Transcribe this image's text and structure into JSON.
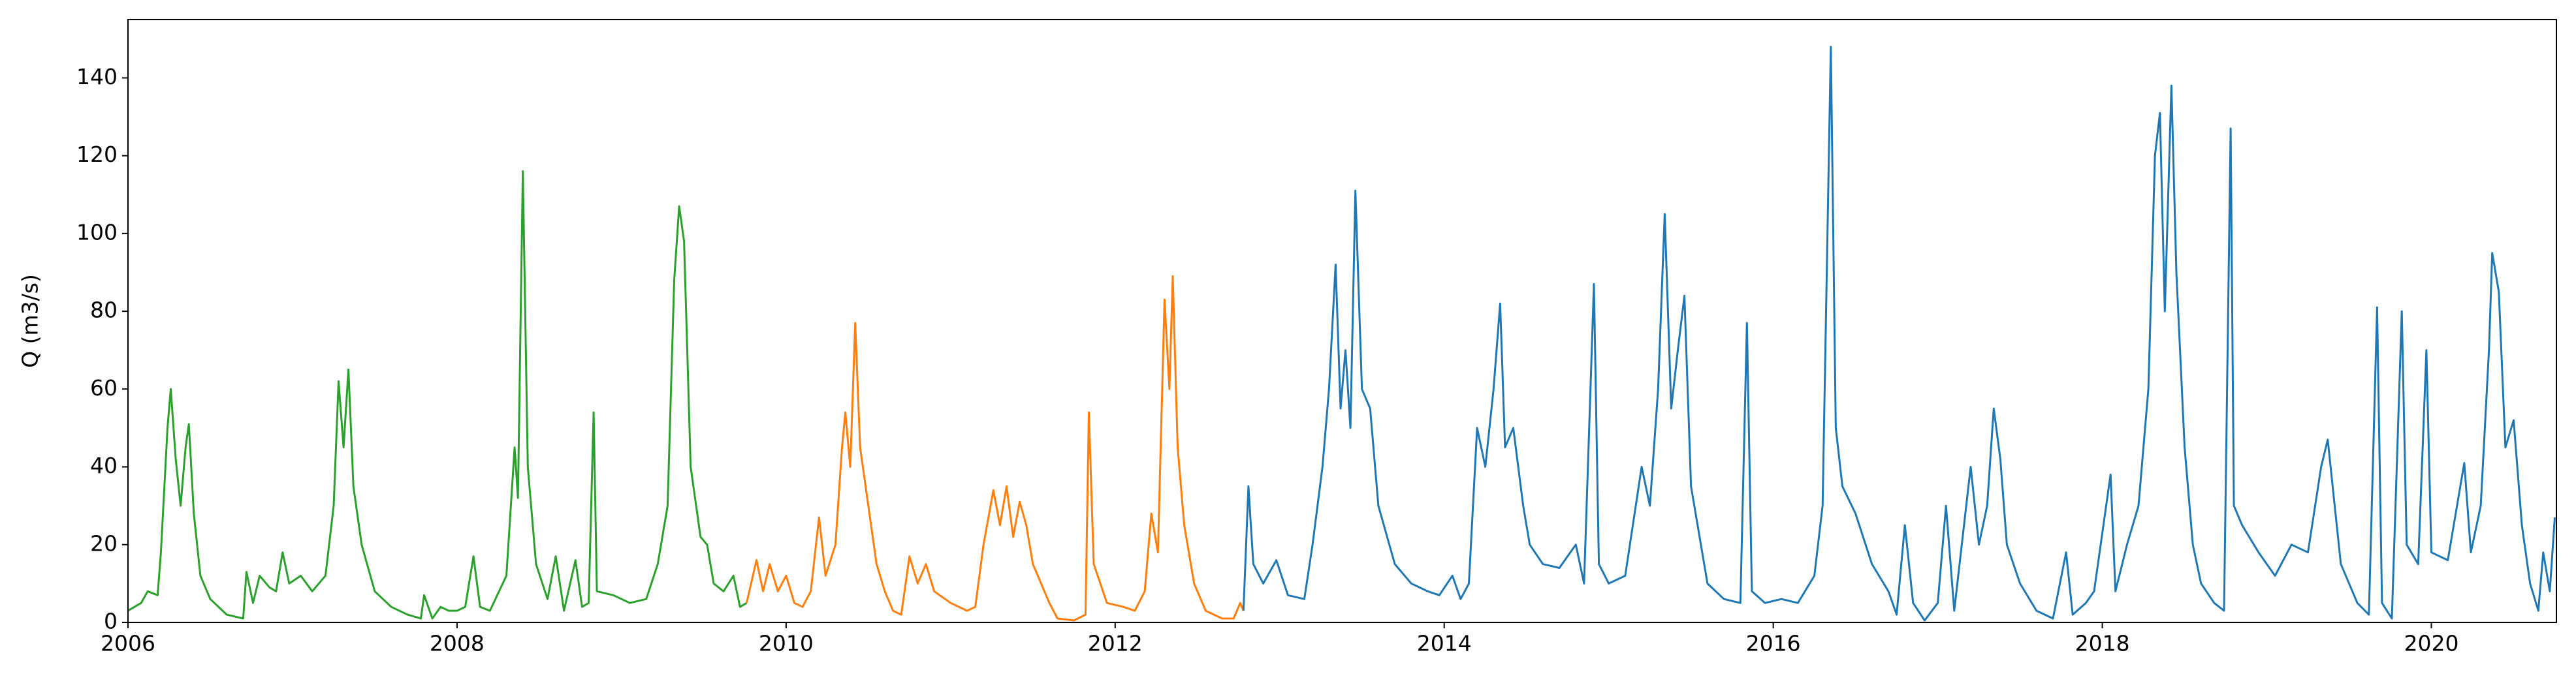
{
  "chart_data": {
    "type": "line",
    "ylabel": "Q (m3/s)",
    "xlim": [
      2006,
      2020.76
    ],
    "ylim": [
      0,
      155
    ],
    "xticks": [
      2006,
      2008,
      2010,
      2012,
      2014,
      2016,
      2018,
      2020
    ],
    "yticks": [
      0,
      20,
      40,
      60,
      80,
      100,
      120,
      140
    ],
    "grid": false,
    "series": [
      {
        "color": "#2ca02c",
        "x": [
          2006.0,
          2006.08,
          2006.12,
          2006.18,
          2006.2,
          2006.24,
          2006.26,
          2006.29,
          2006.32,
          2006.35,
          2006.37,
          2006.4,
          2006.44,
          2006.5,
          2006.6,
          2006.7,
          2006.72,
          2006.76,
          2006.8,
          2006.86,
          2006.9,
          2006.94,
          2006.98,
          2007.05,
          2007.12,
          2007.2,
          2007.25,
          2007.28,
          2007.31,
          2007.34,
          2007.37,
          2007.42,
          2007.5,
          2007.6,
          2007.7,
          2007.78,
          2007.8,
          2007.85,
          2007.9,
          2007.95,
          2008.0,
          2008.05,
          2008.1,
          2008.14,
          2008.2,
          2008.3,
          2008.35,
          2008.37,
          2008.4,
          2008.43,
          2008.48,
          2008.55,
          2008.6,
          2008.65,
          2008.72,
          2008.76,
          2008.8,
          2008.83,
          2008.85,
          2008.95,
          2009.05,
          2009.15,
          2009.22,
          2009.28,
          2009.32,
          2009.35,
          2009.38,
          2009.42,
          2009.48,
          2009.52,
          2009.56,
          2009.62,
          2009.68,
          2009.72,
          2009.76
        ],
        "values": [
          3,
          5,
          8,
          7,
          18,
          50,
          60,
          42,
          30,
          45,
          51,
          28,
          12,
          6,
          2,
          1,
          13,
          5,
          12,
          9,
          8,
          18,
          10,
          12,
          8,
          12,
          30,
          62,
          45,
          65,
          35,
          20,
          8,
          4,
          2,
          1,
          7,
          1,
          4,
          3,
          3,
          4,
          17,
          4,
          3,
          12,
          45,
          32,
          116,
          40,
          15,
          6,
          17,
          3,
          16,
          4,
          5,
          54,
          8,
          7,
          5,
          6,
          15,
          30,
          88,
          107,
          98,
          40,
          22,
          20,
          10,
          8,
          12,
          4,
          5
        ]
      },
      {
        "color": "#ff7f0e",
        "x": [
          2009.76,
          2009.82,
          2009.86,
          2009.9,
          2009.95,
          2010.0,
          2010.05,
          2010.1,
          2010.15,
          2010.2,
          2010.24,
          2010.3,
          2010.34,
          2010.36,
          2010.39,
          2010.42,
          2010.45,
          2010.5,
          2010.55,
          2010.6,
          2010.65,
          2010.7,
          2010.75,
          2010.8,
          2010.85,
          2010.9,
          2011.0,
          2011.1,
          2011.15,
          2011.2,
          2011.26,
          2011.3,
          2011.34,
          2011.38,
          2011.42,
          2011.46,
          2011.5,
          2011.55,
          2011.6,
          2011.65,
          2011.75,
          2011.82,
          2011.84,
          2011.87,
          2011.95,
          2012.05,
          2012.12,
          2012.18,
          2012.22,
          2012.26,
          2012.3,
          2012.33,
          2012.35,
          2012.38,
          2012.42,
          2012.48,
          2012.55,
          2012.65,
          2012.72,
          2012.76,
          2012.78
        ],
        "values": [
          5,
          16,
          8,
          15,
          8,
          12,
          5,
          4,
          8,
          27,
          12,
          20,
          45,
          54,
          40,
          77,
          45,
          30,
          15,
          8,
          3,
          2,
          17,
          10,
          15,
          8,
          5,
          3,
          4,
          20,
          34,
          25,
          35,
          22,
          31,
          25,
          15,
          10,
          5,
          1,
          0.5,
          2,
          54,
          15,
          5,
          4,
          3,
          8,
          28,
          18,
          83,
          60,
          89,
          45,
          25,
          10,
          3,
          1,
          1,
          5,
          3
        ]
      },
      {
        "color": "#1f77b4",
        "x": [
          2012.78,
          2012.81,
          2012.84,
          2012.9,
          2012.98,
          2013.05,
          2013.15,
          2013.2,
          2013.26,
          2013.3,
          2013.34,
          2013.37,
          2013.4,
          2013.43,
          2013.46,
          2013.5,
          2013.55,
          2013.6,
          2013.7,
          2013.8,
          2013.9,
          2013.97,
          2014.05,
          2014.1,
          2014.15,
          2014.2,
          2014.25,
          2014.3,
          2014.34,
          2014.37,
          2014.42,
          2014.48,
          2014.52,
          2014.6,
          2014.7,
          2014.8,
          2014.85,
          2014.91,
          2014.94,
          2015.0,
          2015.1,
          2015.2,
          2015.25,
          2015.3,
          2015.34,
          2015.38,
          2015.42,
          2015.46,
          2015.5,
          2015.6,
          2015.7,
          2015.8,
          2015.84,
          2015.87,
          2015.95,
          2016.05,
          2016.15,
          2016.25,
          2016.3,
          2016.35,
          2016.38,
          2016.42,
          2016.5,
          2016.6,
          2016.7,
          2016.75,
          2016.8,
          2016.85,
          2016.92,
          2017.0,
          2017.05,
          2017.1,
          2017.2,
          2017.25,
          2017.3,
          2017.34,
          2017.38,
          2017.42,
          2017.5,
          2017.6,
          2017.7,
          2017.78,
          2017.82,
          2017.9,
          2017.95,
          2018.05,
          2018.08,
          2018.15,
          2018.22,
          2018.28,
          2018.32,
          2018.35,
          2018.38,
          2018.42,
          2018.45,
          2018.5,
          2018.55,
          2018.6,
          2018.68,
          2018.74,
          2018.78,
          2018.8,
          2018.85,
          2018.95,
          2019.05,
          2019.15,
          2019.25,
          2019.33,
          2019.37,
          2019.4,
          2019.45,
          2019.55,
          2019.62,
          2019.67,
          2019.7,
          2019.76,
          2019.82,
          2019.85,
          2019.92,
          2019.97,
          2020.0,
          2020.1,
          2020.2,
          2020.24,
          2020.3,
          2020.35,
          2020.37,
          2020.41,
          2020.45,
          2020.5,
          2020.55,
          2020.6,
          2020.65,
          2020.68,
          2020.72,
          2020.75
        ],
        "values": [
          3,
          35,
          15,
          10,
          16,
          7,
          6,
          20,
          40,
          60,
          92,
          55,
          70,
          50,
          111,
          60,
          55,
          30,
          15,
          10,
          8,
          7,
          12,
          6,
          10,
          50,
          40,
          60,
          82,
          45,
          50,
          30,
          20,
          15,
          14,
          20,
          10,
          87,
          15,
          10,
          12,
          40,
          30,
          60,
          105,
          55,
          70,
          84,
          35,
          10,
          6,
          5,
          77,
          8,
          5,
          6,
          5,
          12,
          30,
          148,
          50,
          35,
          28,
          15,
          8,
          2,
          25,
          5,
          0.5,
          5,
          30,
          3,
          40,
          20,
          30,
          55,
          42,
          20,
          10,
          3,
          1,
          18,
          2,
          5,
          8,
          38,
          8,
          20,
          30,
          60,
          120,
          131,
          80,
          138,
          90,
          45,
          20,
          10,
          5,
          3,
          127,
          30,
          25,
          18,
          12,
          20,
          18,
          40,
          47,
          35,
          15,
          5,
          2,
          81,
          5,
          1,
          80,
          20,
          15,
          70,
          18,
          16,
          41,
          18,
          30,
          70,
          95,
          85,
          45,
          52,
          25,
          10,
          3,
          18,
          8,
          27
        ]
      }
    ]
  }
}
